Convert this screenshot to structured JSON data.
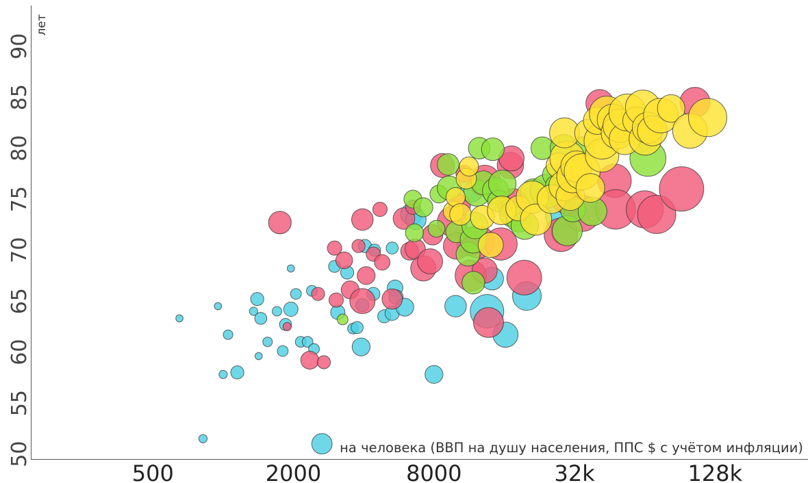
{
  "chart_data": {
    "type": "scatter",
    "title": "",
    "xlabel": "на человека (ВВП на душу населения, ППС $ с учётом инфляции)",
    "ylabel": "лет",
    "x_scale": "log",
    "x_ticks": [
      500,
      2000,
      8000,
      32000,
      128000
    ],
    "x_tick_labels": [
      "500",
      "2000",
      "8000",
      "32k",
      "128k"
    ],
    "xlim": [
      150,
      320000
    ],
    "y_ticks": [
      50,
      55,
      60,
      65,
      70,
      75,
      80,
      85,
      90
    ],
    "y_tick_labels": [
      "50",
      "55",
      "60",
      "65",
      "70",
      "75",
      "80",
      "85",
      "90"
    ],
    "ylim": [
      49.5,
      94
    ],
    "grid": false,
    "legend": "none",
    "colors": {
      "blue": "#4fd0e3",
      "red": "#f25c7a",
      "green": "#8ee03a",
      "yellow": "#ffe333"
    },
    "series": [
      {
        "color": "blue",
        "points": [
          [
            650,
            63.3,
            0.3
          ],
          [
            950,
            64.5,
            0.3
          ],
          [
            820,
            51.5,
            0.35
          ],
          [
            1000,
            57.8,
            0.35
          ],
          [
            1050,
            61.7,
            0.4
          ],
          [
            1150,
            58.0,
            0.55
          ],
          [
            1350,
            64.0,
            0.35
          ],
          [
            1400,
            65.2,
            0.55
          ],
          [
            1450,
            63.3,
            0.5
          ],
          [
            1420,
            59.6,
            0.3
          ],
          [
            1550,
            61.0,
            0.4
          ],
          [
            1700,
            64.0,
            0.4
          ],
          [
            1800,
            60.1,
            0.45
          ],
          [
            1850,
            62.7,
            0.5
          ],
          [
            1950,
            64.2,
            0.6
          ],
          [
            1950,
            68.2,
            0.3
          ],
          [
            2050,
            65.7,
            0.45
          ],
          [
            2150,
            61.0,
            0.45
          ],
          [
            2300,
            61.0,
            0.45
          ],
          [
            2450,
            60.3,
            0.45
          ],
          [
            2400,
            66.0,
            0.45
          ],
          [
            2650,
            51.0,
            0.85
          ],
          [
            3000,
            68.4,
            0.5
          ],
          [
            3100,
            63.9,
            0.6
          ],
          [
            3400,
            67.8,
            0.55
          ],
          [
            3600,
            62.3,
            0.45
          ],
          [
            3750,
            62.4,
            0.5
          ],
          [
            3900,
            60.5,
            0.75
          ],
          [
            3950,
            64.6,
            0.55
          ],
          [
            4050,
            70.4,
            0.55
          ],
          [
            4400,
            65.7,
            0.55
          ],
          [
            4450,
            70.0,
            0.5
          ],
          [
            4900,
            63.5,
            0.55
          ],
          [
            5300,
            63.8,
            0.6
          ],
          [
            5450,
            66.3,
            0.65
          ],
          [
            5500,
            65.4,
            0.6
          ],
          [
            5300,
            70.2,
            0.5
          ],
          [
            6000,
            64.4,
            0.75
          ],
          [
            6400,
            73.5,
            0.9
          ],
          [
            6700,
            73.0,
            0.85
          ],
          [
            8000,
            57.8,
            0.75
          ],
          [
            9900,
            64.5,
            0.9
          ],
          [
            11200,
            70.5,
            0.9
          ],
          [
            11500,
            76.0,
            1.1
          ],
          [
            13500,
            64.0,
            1.4
          ],
          [
            14200,
            67.2,
            0.95
          ],
          [
            16200,
            61.7,
            1.05
          ],
          [
            20000,
            65.5,
            1.2
          ],
          [
            24000,
            75.0,
            0.9
          ],
          [
            28000,
            73.4,
            1.3
          ],
          [
            29000,
            71.8,
            1.1
          ]
        ]
      },
      {
        "color": "red",
        "points": [
          [
            1880,
            62.5,
            0.35
          ],
          [
            1750,
            72.7,
            0.95
          ],
          [
            2350,
            59.2,
            0.75
          ],
          [
            2550,
            65.7,
            0.55
          ],
          [
            2700,
            59.0,
            0.55
          ],
          [
            3050,
            65.1,
            0.6
          ],
          [
            3000,
            70.2,
            0.6
          ],
          [
            3300,
            69.0,
            0.7
          ],
          [
            3500,
            66.1,
            0.75
          ],
          [
            3950,
            73.0,
            0.9
          ],
          [
            3950,
            65.0,
            1.05
          ],
          [
            3800,
            70.4,
            0.55
          ],
          [
            4100,
            67.5,
            0.75
          ],
          [
            4400,
            69.6,
            0.6
          ],
          [
            4700,
            74.0,
            0.6
          ],
          [
            4800,
            68.8,
            0.65
          ],
          [
            5300,
            65.2,
            0.85
          ],
          [
            5950,
            73.1,
            0.9
          ],
          [
            6300,
            69.9,
            0.75
          ],
          [
            6500,
            74.2,
            0.6
          ],
          [
            6650,
            70.1,
            0.85
          ],
          [
            7200,
            68.2,
            1.05
          ],
          [
            7700,
            68.9,
            1.05
          ],
          [
            7900,
            71.5,
            0.85
          ],
          [
            8700,
            78.3,
            1.0
          ],
          [
            9600,
            72.8,
            1.25
          ],
          [
            10000,
            70.4,
            1.1
          ],
          [
            10300,
            74.4,
            0.9
          ],
          [
            10800,
            77.5,
            0.7
          ],
          [
            11500,
            67.5,
            1.3
          ],
          [
            12400,
            70.8,
            1.35
          ],
          [
            13200,
            76.8,
            1.3
          ],
          [
            13700,
            62.9,
            1.25
          ],
          [
            13200,
            68.0,
            1.05
          ],
          [
            15500,
            70.6,
            1.35
          ],
          [
            17000,
            78.3,
            1.1
          ],
          [
            17200,
            79.0,
            1.05
          ],
          [
            17500,
            74.5,
            1.3
          ],
          [
            19500,
            67.3,
            1.45
          ],
          [
            28000,
            71.5,
            1.4
          ],
          [
            28500,
            76.0,
            1.25
          ],
          [
            29800,
            75.0,
            1.25
          ],
          [
            34500,
            73.6,
            1.5
          ],
          [
            41000,
            84.4,
            1.15
          ],
          [
            47500,
            76.8,
            1.4
          ],
          [
            48000,
            74.0,
            1.65
          ],
          [
            64000,
            74.0,
            1.55
          ],
          [
            72000,
            73.5,
            1.6
          ],
          [
            92000,
            76.0,
            1.85
          ],
          [
            105000,
            84.5,
            1.25
          ]
        ]
      },
      {
        "color": "green",
        "points": [
          [
            3250,
            63.2,
            0.45
          ],
          [
            6600,
            71.7,
            0.75
          ],
          [
            6500,
            75.0,
            0.75
          ],
          [
            7200,
            74.2,
            0.8
          ],
          [
            8200,
            72.1,
            0.7
          ],
          [
            8400,
            75.5,
            0.75
          ],
          [
            9200,
            78.4,
            0.9
          ],
          [
            9300,
            76.1,
            1.0
          ],
          [
            10000,
            71.8,
            0.9
          ],
          [
            11200,
            69.6,
            1.0
          ],
          [
            11800,
            71.0,
            1.1
          ],
          [
            12000,
            72.4,
            1.1
          ],
          [
            11800,
            66.8,
            0.95
          ],
          [
            12200,
            75.6,
            1.1
          ],
          [
            12500,
            80.0,
            0.9
          ],
          [
            13000,
            76.6,
            1.0
          ],
          [
            14300,
            79.9,
            0.95
          ],
          [
            14700,
            75.8,
            1.1
          ],
          [
            15100,
            74.8,
            0.9
          ],
          [
            15700,
            76.5,
            1.15
          ],
          [
            17300,
            73.5,
            1.05
          ],
          [
            18500,
            73.0,
            1.05
          ],
          [
            19600,
            72.4,
            1.15
          ],
          [
            21400,
            75.7,
            1.1
          ],
          [
            23300,
            80.0,
            0.95
          ],
          [
            24400,
            75.8,
            1.4
          ],
          [
            26100,
            77.4,
            0.95
          ],
          [
            26700,
            76.3,
            0.9
          ],
          [
            28800,
            80.0,
            1.15
          ],
          [
            29800,
            71.9,
            1.25
          ],
          [
            31500,
            74.0,
            1.05
          ],
          [
            34500,
            80.0,
            0.95
          ],
          [
            38200,
            73.8,
            1.2
          ],
          [
            66000,
            79.0,
            1.5
          ]
        ]
      },
      {
        "color": "yellow",
        "points": [
          [
            9700,
            73.8,
            0.85
          ],
          [
            9900,
            75.2,
            0.8
          ],
          [
            10400,
            73.5,
            0.9
          ],
          [
            11000,
            77.0,
            0.85
          ],
          [
            11300,
            78.2,
            0.8
          ],
          [
            12900,
            73.2,
            1.0
          ],
          [
            14000,
            70.5,
            1.05
          ],
          [
            15600,
            73.9,
            1.2
          ],
          [
            18400,
            74.1,
            1.05
          ],
          [
            21100,
            75.2,
            1.35
          ],
          [
            21900,
            73.0,
            1.3
          ],
          [
            25500,
            75.0,
            1.2
          ],
          [
            27400,
            78.3,
            1.05
          ],
          [
            28800,
            76.3,
            1.25
          ],
          [
            29800,
            79.0,
            1.45
          ],
          [
            30700,
            75.3,
            1.2
          ],
          [
            31500,
            77.2,
            1.35
          ],
          [
            32600,
            78.2,
            1.3
          ],
          [
            29000,
            81.5,
            1.25
          ],
          [
            34500,
            77.7,
            1.5
          ],
          [
            36700,
            81.5,
            1.15
          ],
          [
            37400,
            76.1,
            1.2
          ],
          [
            42000,
            79.3,
            1.4
          ],
          [
            42000,
            80.7,
            1.5
          ],
          [
            40000,
            82.7,
            1.15
          ],
          [
            44000,
            83.4,
            1.45
          ],
          [
            46700,
            82.8,
            1.3
          ],
          [
            48800,
            81.5,
            1.35
          ],
          [
            50000,
            82.2,
            1.4
          ],
          [
            52600,
            80.9,
            1.3
          ],
          [
            54000,
            83.5,
            1.55
          ],
          [
            59000,
            82.7,
            1.15
          ],
          [
            62800,
            84.0,
            1.45
          ],
          [
            64300,
            80.9,
            1.35
          ],
          [
            66000,
            82.0,
            1.3
          ],
          [
            69000,
            81.7,
            1.25
          ],
          [
            75000,
            83.2,
            1.45
          ],
          [
            83000,
            83.9,
            1.15
          ],
          [
            100000,
            81.7,
            1.45
          ],
          [
            119000,
            83.0,
            1.6
          ]
        ]
      }
    ]
  }
}
